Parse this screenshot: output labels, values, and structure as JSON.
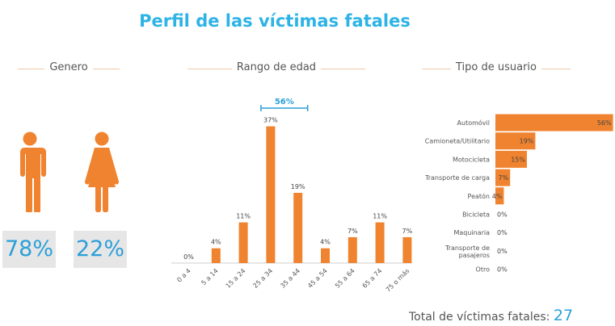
{
  "header": {
    "title": "Perfil de las víctimas fatales"
  },
  "sections": {
    "gender": "Genero",
    "age": "Rango de edad",
    "user": "Tipo de usuario"
  },
  "gender": {
    "male_pct": "78%",
    "female_pct": "22%"
  },
  "total": {
    "label": "Total de víctimas fatales:",
    "value": "27"
  },
  "colors": {
    "accent": "#2db3e6",
    "bar": "#f0832f",
    "pct_text": "#2b9fd8",
    "box": "#e6e6e6"
  },
  "chart_data": [
    {
      "type": "bar",
      "orientation": "vertical",
      "title": "Rango de edad",
      "categories": [
        "0 a 4",
        "5 a 14",
        "15 a 24",
        "25 a 34",
        "35 a 44",
        "45 a 54",
        "55 a 64",
        "65 a 74",
        "75 o más"
      ],
      "values": [
        0,
        4,
        11,
        37,
        19,
        4,
        7,
        11,
        7
      ],
      "value_labels": [
        "0%",
        "4%",
        "11%",
        "37%",
        "19%",
        "4%",
        "7%",
        "11%",
        "7%"
      ],
      "unit": "%",
      "annotation": {
        "text": "56%",
        "spans": [
          "25 a 34",
          "35 a 44"
        ]
      }
    },
    {
      "type": "bar",
      "orientation": "horizontal",
      "title": "Tipo de usuario",
      "categories": [
        "Automóvil",
        "Camioneta/Utilitario",
        "Motocicleta",
        "Transporte de carga",
        "Peatón",
        "Bicicleta",
        "Maquinaria",
        "Transporte de pasajeros",
        "Otro"
      ],
      "values": [
        56,
        19,
        15,
        7,
        4,
        0,
        0,
        0,
        0
      ],
      "value_labels": [
        "56%",
        "19%",
        "15%",
        "7%",
        "4%",
        "0%",
        "0%",
        "0%",
        "0%"
      ],
      "unit": "%"
    }
  ]
}
